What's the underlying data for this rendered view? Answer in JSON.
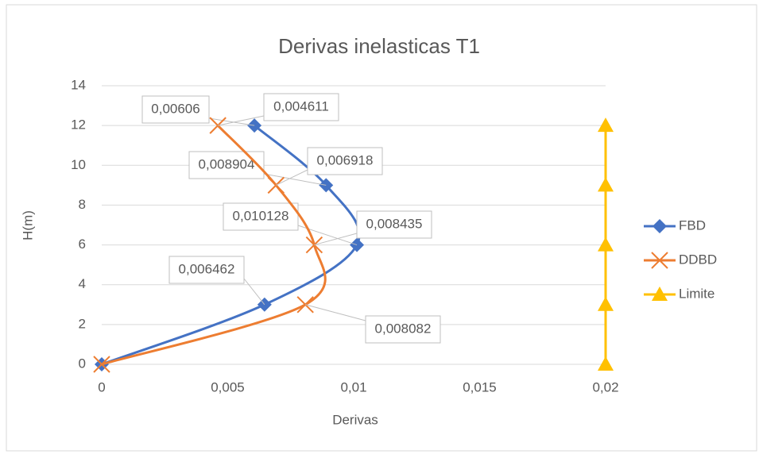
{
  "chart_data": {
    "type": "scatter",
    "title": "Derivas inelasticas T1",
    "x_label": "Derivas",
    "y_label": "H(m)",
    "xlim": [
      0,
      0.02
    ],
    "ylim": [
      0,
      14
    ],
    "xticks": [
      0,
      {
        "value": 0.005,
        "label": "0,005"
      },
      {
        "value": 0.01,
        "label": "0,01"
      },
      {
        "value": 0.015,
        "label": "0,015"
      },
      {
        "value": 0.02,
        "label": "0,02"
      }
    ],
    "yticks": [
      0,
      2,
      4,
      6,
      8,
      10,
      12,
      14
    ],
    "grid": true,
    "legend": "right",
    "series": [
      {
        "name": "FBD",
        "color": "#4472c4",
        "marker": "diamond",
        "smooth": true,
        "x": [
          0,
          0.006462,
          0.010128,
          0.008904,
          0.00606
        ],
        "x_labels": [
          null,
          "0,006462",
          "0,010128",
          "0,008904",
          "0,00606"
        ],
        "values": [
          0,
          3,
          6,
          9,
          12
        ]
      },
      {
        "name": "DDBD",
        "color": "#ed7d31",
        "marker": "x",
        "smooth": true,
        "x": [
          0,
          0.008082,
          0.008435,
          0.006918,
          0.004611
        ],
        "x_labels": [
          null,
          "0,008082",
          "0,008435",
          "0,006918",
          "0,004611"
        ],
        "values": [
          0,
          3,
          6,
          9,
          12
        ]
      },
      {
        "name": "Limite",
        "color": "#ffc000",
        "marker": "triangle",
        "smooth": false,
        "x": [
          0.02,
          0.02,
          0.02,
          0.02,
          0.02
        ],
        "values": [
          0,
          3,
          6,
          9,
          12
        ]
      }
    ]
  }
}
